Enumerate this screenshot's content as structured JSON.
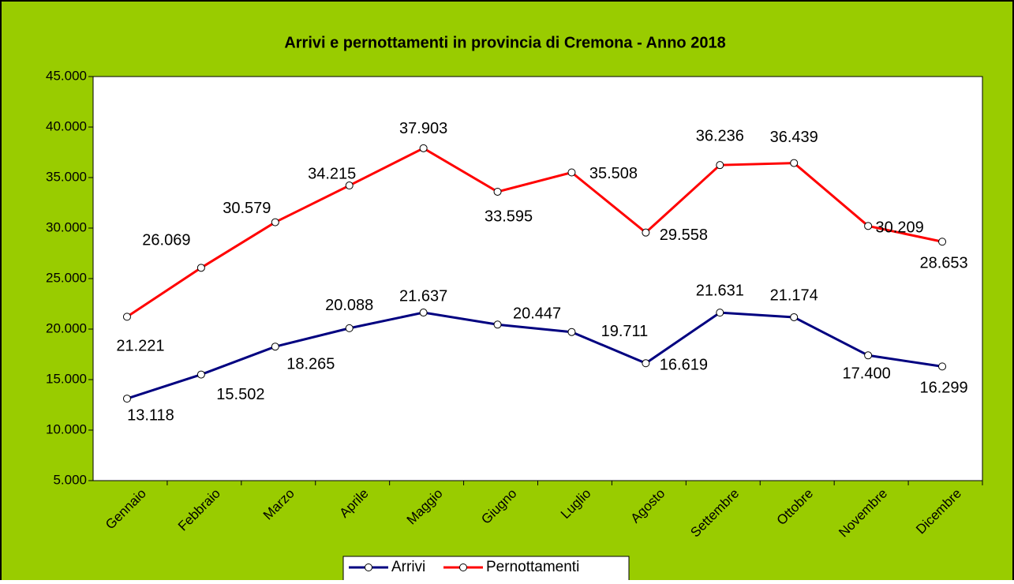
{
  "chart_data": {
    "type": "line",
    "title": "Arrivi e pernottamenti in provincia di Cremona - Anno 2018",
    "categories": [
      "Gennaio",
      "Febbraio",
      "Marzo",
      "Aprile",
      "Maggio",
      "Giugno",
      "Luglio",
      "Agosto",
      "Settembre",
      "Ottobre",
      "Novembre",
      "Dicembre"
    ],
    "series": [
      {
        "name": "Arrivi",
        "color": "#000080",
        "values": [
          13118,
          15502,
          18265,
          20088,
          21637,
          20447,
          19711,
          16619,
          21631,
          21174,
          17400,
          16299
        ],
        "value_labels": [
          "13.118",
          "15.502",
          "18.265",
          "20.088",
          "21.637",
          "20.447",
          "19.711",
          "16.619",
          "21.631",
          "21.174",
          "17.400",
          "16.299"
        ]
      },
      {
        "name": "Pernottamenti",
        "color": "#ff0000",
        "values": [
          21221,
          26069,
          30579,
          34215,
          37903,
          33595,
          35508,
          29558,
          36236,
          36439,
          30209,
          28653
        ],
        "value_labels": [
          "21.221",
          "26.069",
          "30.579",
          "34.215",
          "37.903",
          "33.595",
          "35.508",
          "29.558",
          "36.236",
          "36.439",
          "30.209",
          "28.653"
        ]
      }
    ],
    "ylim": [
      5000,
      45000
    ],
    "yticks": [
      {
        "value": 5000,
        "label": "5.000"
      },
      {
        "value": 10000,
        "label": "10.000"
      },
      {
        "value": 15000,
        "label": "15.000"
      },
      {
        "value": 20000,
        "label": "20.000"
      },
      {
        "value": 25000,
        "label": "25.000"
      },
      {
        "value": 30000,
        "label": "30.000"
      },
      {
        "value": 35000,
        "label": "35.000"
      },
      {
        "value": 40000,
        "label": "40.000"
      },
      {
        "value": 45000,
        "label": "45.000"
      }
    ],
    "legend": "bottom",
    "grid": false
  }
}
